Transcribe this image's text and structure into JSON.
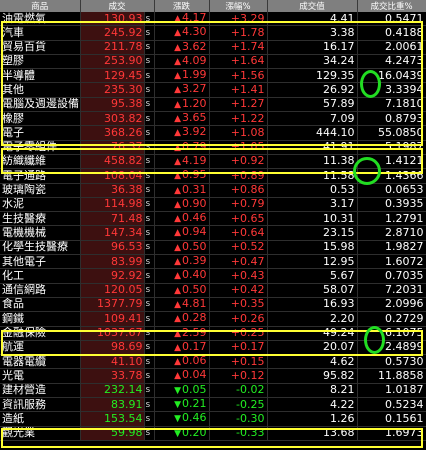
{
  "header": {
    "name": "商品",
    "price": "成交",
    "chg": "漲跌",
    "pct": "漲幅%",
    "vol": "成交值",
    "ratio": "成交比重%"
  },
  "colors": {
    "up": "#ff3838",
    "down": "#22ee22",
    "highlight_box": "#ffff33",
    "circle": "#22dd22"
  },
  "rows": [
    {
      "name": "油電燃氣",
      "price": "130.93",
      "s": "s",
      "chg": "4.17",
      "pct": "+3.29",
      "vol": "4.41",
      "ratio": "0.5471",
      "dir": "up"
    },
    {
      "name": "汽車",
      "price": "245.92",
      "s": "s",
      "chg": "4.30",
      "pct": "+1.78",
      "vol": "3.38",
      "ratio": "0.4188",
      "dir": "up"
    },
    {
      "name": "貿易百貨",
      "price": "211.78",
      "s": "s",
      "chg": "3.62",
      "pct": "+1.74",
      "vol": "16.17",
      "ratio": "2.0061",
      "dir": "up"
    },
    {
      "name": "塑膠",
      "price": "253.90",
      "s": "s",
      "chg": "4.09",
      "pct": "+1.64",
      "vol": "34.24",
      "ratio": "4.2473",
      "dir": "up"
    },
    {
      "name": "半導體",
      "price": "129.45",
      "s": "s",
      "chg": "1.99",
      "pct": "+1.56",
      "vol": "129.35",
      "ratio": "16.0439",
      "dir": "up"
    },
    {
      "name": "其他",
      "price": "235.30",
      "s": "s",
      "chg": "3.27",
      "pct": "+1.41",
      "vol": "26.92",
      "ratio": "3.3394",
      "dir": "up"
    },
    {
      "name": "電腦及週邊設備",
      "price": "95.38",
      "s": "s",
      "chg": "1.20",
      "pct": "+1.27",
      "vol": "57.89",
      "ratio": "7.1810",
      "dir": "up"
    },
    {
      "name": "橡膠",
      "price": "303.82",
      "s": "s",
      "chg": "3.65",
      "pct": "+1.22",
      "vol": "7.09",
      "ratio": "0.8793",
      "dir": "up"
    },
    {
      "name": "電子",
      "price": "368.26",
      "s": "s",
      "chg": "3.92",
      "pct": "+1.08",
      "vol": "444.10",
      "ratio": "55.0850",
      "dir": "up"
    },
    {
      "name": "電子零組件",
      "price": "76.37",
      "s": "s",
      "chg": "0.79",
      "pct": "+1.05",
      "vol": "41.91",
      "ratio": "5.1987",
      "dir": "up"
    },
    {
      "name": "紡織纖維",
      "price": "458.82",
      "s": "s",
      "chg": "4.19",
      "pct": "+0.92",
      "vol": "11.38",
      "ratio": "1.4121",
      "dir": "up"
    },
    {
      "name": "電子通路",
      "price": "108.04",
      "s": "s",
      "chg": "0.95",
      "pct": "+0.89",
      "vol": "11.58",
      "ratio": "1.4366",
      "dir": "up"
    },
    {
      "name": "玻璃陶瓷",
      "price": "36.38",
      "s": "s",
      "chg": "0.31",
      "pct": "+0.86",
      "vol": "0.53",
      "ratio": "0.0653",
      "dir": "up"
    },
    {
      "name": "水泥",
      "price": "114.98",
      "s": "s",
      "chg": "0.90",
      "pct": "+0.79",
      "vol": "3.17",
      "ratio": "0.3935",
      "dir": "up"
    },
    {
      "name": "生技醫療",
      "price": "71.48",
      "s": "s",
      "chg": "0.46",
      "pct": "+0.65",
      "vol": "10.31",
      "ratio": "1.2791",
      "dir": "up"
    },
    {
      "name": "電機機械",
      "price": "147.34",
      "s": "s",
      "chg": "0.94",
      "pct": "+0.64",
      "vol": "23.15",
      "ratio": "2.8710",
      "dir": "up"
    },
    {
      "name": "化學生技醫療",
      "price": "96.53",
      "s": "s",
      "chg": "0.50",
      "pct": "+0.52",
      "vol": "15.98",
      "ratio": "1.9827",
      "dir": "up"
    },
    {
      "name": "其他電子",
      "price": "83.99",
      "s": "s",
      "chg": "0.39",
      "pct": "+0.47",
      "vol": "12.95",
      "ratio": "1.6072",
      "dir": "up"
    },
    {
      "name": "化工",
      "price": "92.92",
      "s": "s",
      "chg": "0.40",
      "pct": "+0.43",
      "vol": "5.67",
      "ratio": "0.7035",
      "dir": "up"
    },
    {
      "name": "通信網路",
      "price": "120.05",
      "s": "s",
      "chg": "0.50",
      "pct": "+0.42",
      "vol": "58.07",
      "ratio": "7.2031",
      "dir": "up"
    },
    {
      "name": "食品",
      "price": "1377.79",
      "s": "s",
      "chg": "4.81",
      "pct": "+0.35",
      "vol": "16.93",
      "ratio": "2.0996",
      "dir": "up"
    },
    {
      "name": "鋼鐵",
      "price": "109.41",
      "s": "s",
      "chg": "0.28",
      "pct": "+0.26",
      "vol": "2.20",
      "ratio": "0.2729",
      "dir": "up"
    },
    {
      "name": "金融保險",
      "price": "1037.67",
      "s": "s",
      "chg": "2.59",
      "pct": "+0.25",
      "vol": "49.24",
      "ratio": "6.1075",
      "dir": "up"
    },
    {
      "name": "航運",
      "price": "98.69",
      "s": "s",
      "chg": "0.17",
      "pct": "+0.17",
      "vol": "20.07",
      "ratio": "2.4899",
      "dir": "up"
    },
    {
      "name": "電器電纜",
      "price": "41.10",
      "s": "s",
      "chg": "0.06",
      "pct": "+0.15",
      "vol": "4.62",
      "ratio": "0.5730",
      "dir": "up"
    },
    {
      "name": "光電",
      "price": "33.78",
      "s": "s",
      "chg": "0.04",
      "pct": "+0.12",
      "vol": "95.82",
      "ratio": "11.8858",
      "dir": "up"
    },
    {
      "name": "建材營造",
      "price": "232.14",
      "s": "s",
      "chg": "0.05",
      "pct": "-0.02",
      "vol": "8.21",
      "ratio": "1.0187",
      "dir": "down"
    },
    {
      "name": "資訊服務",
      "price": "83.91",
      "s": "s",
      "chg": "0.21",
      "pct": "-0.25",
      "vol": "4.22",
      "ratio": "0.5234",
      "dir": "down"
    },
    {
      "name": "造紙",
      "price": "153.54",
      "s": "s",
      "chg": "0.46",
      "pct": "-0.30",
      "vol": "1.26",
      "ratio": "0.1561",
      "dir": "down"
    },
    {
      "name": "觀光業",
      "price": "59.98",
      "s": "s",
      "chg": "0.20",
      "pct": "-0.33",
      "vol": "13.68",
      "ratio": "1.6973",
      "dir": "down"
    }
  ]
}
